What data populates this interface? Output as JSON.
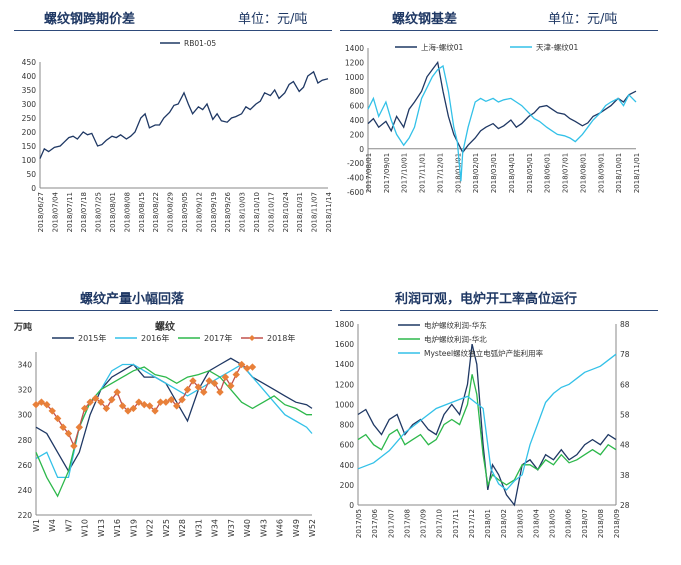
{
  "panels": {
    "p1": {
      "title": "螺纹钢跨期价差",
      "unit": "单位：元/吨"
    },
    "p2": {
      "title": "螺纹钢基差",
      "unit": "单位：元/吨"
    },
    "p3": {
      "title": "螺纹产量小幅回落"
    },
    "p4": {
      "title": "利润可观，电炉开工率高位运行"
    }
  },
  "colors": {
    "navy": "#1f3864",
    "cyan": "#33c1e8",
    "green": "#2db84b",
    "orange": "#e8803a",
    "red": "#c0504d"
  },
  "chart_data": [
    {
      "type": "line",
      "title": "螺纹钢跨期价差",
      "ylim": [
        0,
        450
      ],
      "yticks": [
        0,
        50,
        100,
        150,
        200,
        250,
        300,
        350,
        400,
        450
      ],
      "xticks": [
        "2018/06/27",
        "2018/07/04",
        "2018/07/11",
        "2018/07/18",
        "2018/07/25",
        "2018/08/01",
        "2018/08/08",
        "2018/08/15",
        "2018/08/22",
        "2018/08/29",
        "2018/09/05",
        "2018/09/12",
        "2018/09/19",
        "2018/09/26",
        "2018/10/03",
        "2018/10/10",
        "2018/10/17",
        "2018/10/24",
        "2018/10/31",
        "2018/11/07",
        "2018/11/14"
      ],
      "series": [
        {
          "name": "RB01-05",
          "color": "#1f3864",
          "x": [
            0,
            0.3,
            0.6,
            1,
            1.4,
            1.7,
            2,
            2.3,
            2.6,
            3,
            3.3,
            3.6,
            4,
            4.3,
            4.6,
            5,
            5.3,
            5.6,
            6,
            6.3,
            6.6,
            7,
            7.3,
            7.6,
            8,
            8.3,
            8.6,
            9,
            9.3,
            9.6,
            10,
            10.3,
            10.6,
            11,
            11.3,
            11.6,
            12,
            12.3,
            12.6,
            13,
            13.3,
            13.6,
            14,
            14.3,
            14.6,
            15,
            15.3,
            15.6,
            16,
            16.3,
            16.6,
            17,
            17.3,
            17.6,
            18,
            18.3,
            18.6,
            19,
            19.3,
            19.6,
            20
          ],
          "y": [
            105,
            140,
            130,
            145,
            150,
            165,
            180,
            185,
            175,
            200,
            190,
            195,
            150,
            155,
            170,
            185,
            180,
            190,
            175,
            185,
            200,
            250,
            265,
            215,
            225,
            225,
            250,
            270,
            295,
            300,
            340,
            300,
            265,
            290,
            280,
            300,
            245,
            265,
            240,
            235,
            250,
            255,
            265,
            290,
            280,
            300,
            310,
            340,
            330,
            350,
            320,
            340,
            370,
            380,
            345,
            360,
            400,
            415,
            375,
            385,
            390
          ]
        }
      ]
    },
    {
      "type": "line",
      "title": "螺纹钢基差",
      "ylim": [
        -600,
        1400
      ],
      "yticks": [
        -600,
        -400,
        -200,
        0,
        200,
        400,
        600,
        800,
        1000,
        1200,
        1400
      ],
      "xticks": [
        "2017/08/01",
        "2017/09/01",
        "2017/10/01",
        "2017/11/01",
        "2017/12/01",
        "2018/01/01",
        "2018/02/01",
        "2018/03/01",
        "2018/04/01",
        "2018/05/01",
        "2018/06/01",
        "2018/07/01",
        "2018/08/01",
        "2018/09/01",
        "2018/10/01",
        "2018/11/01"
      ],
      "series": [
        {
          "name": "上海-螺纹01",
          "color": "#1f3864",
          "x": [
            0,
            0.3,
            0.6,
            1,
            1.3,
            1.6,
            2,
            2.3,
            2.6,
            3,
            3.3,
            3.6,
            3.9,
            4.2,
            4.5,
            4.8,
            5,
            5.3,
            5.6,
            6,
            6.3,
            6.6,
            7,
            7.3,
            7.6,
            8,
            8.3,
            8.6,
            9,
            9.3,
            9.6,
            10,
            10.3,
            10.6,
            11,
            11.3,
            11.6,
            12,
            12.3,
            12.6,
            13,
            13.3,
            13.6,
            14,
            14.3,
            14.6,
            15
          ],
          "y": [
            350,
            420,
            300,
            380,
            250,
            450,
            300,
            550,
            650,
            800,
            1000,
            1100,
            1200,
            800,
            450,
            200,
            100,
            -50,
            50,
            150,
            250,
            300,
            350,
            280,
            320,
            400,
            300,
            350,
            450,
            500,
            580,
            600,
            550,
            500,
            480,
            420,
            380,
            320,
            360,
            450,
            500,
            550,
            600,
            700,
            650,
            750,
            800
          ]
        },
        {
          "name": "天津-螺纹01",
          "color": "#33c1e8",
          "x": [
            0,
            0.3,
            0.6,
            1,
            1.3,
            1.6,
            2,
            2.3,
            2.6,
            3,
            3.3,
            3.6,
            3.9,
            4.2,
            4.5,
            4.8,
            5,
            5.2,
            5.3,
            5.6,
            6,
            6.3,
            6.6,
            7,
            7.3,
            7.6,
            8,
            8.3,
            8.6,
            9,
            9.3,
            9.6,
            10,
            10.3,
            10.6,
            11,
            11.3,
            11.6,
            12,
            12.3,
            12.6,
            13,
            13.3,
            13.6,
            14,
            14.3,
            14.6,
            15
          ],
          "y": [
            550,
            700,
            450,
            650,
            400,
            200,
            50,
            150,
            300,
            700,
            850,
            1000,
            1100,
            1150,
            800,
            300,
            100,
            -450,
            -50,
            300,
            650,
            700,
            660,
            700,
            650,
            680,
            700,
            650,
            600,
            500,
            420,
            380,
            300,
            250,
            200,
            180,
            150,
            100,
            200,
            300,
            400,
            500,
            600,
            650,
            700,
            600,
            750,
            650
          ]
        }
      ]
    },
    {
      "type": "line",
      "title": "螺纹产量小幅回落",
      "ylabel": "万吨",
      "overlay_label": "螺纹",
      "ylim": [
        220,
        350
      ],
      "yticks": [
        220,
        240,
        260,
        280,
        300,
        320,
        340
      ],
      "xticks": [
        "W1",
        "W4",
        "W7",
        "W10",
        "W13",
        "W16",
        "W19",
        "W22",
        "W25",
        "W28",
        "W31",
        "W34",
        "W37",
        "W40",
        "W43",
        "W46",
        "W49",
        "W52"
      ],
      "series": [
        {
          "name": "2015年",
          "color": "#1f3864",
          "x": [
            1,
            3,
            5,
            7,
            9,
            11,
            13,
            15,
            17,
            19,
            21,
            23,
            25,
            27,
            29,
            31,
            33,
            35,
            37,
            39,
            41,
            43,
            45,
            47,
            49,
            51,
            52
          ],
          "y": [
            290,
            285,
            270,
            255,
            270,
            300,
            320,
            330,
            335,
            340,
            330,
            330,
            325,
            310,
            295,
            320,
            335,
            340,
            345,
            340,
            330,
            325,
            320,
            315,
            310,
            308,
            305
          ]
        },
        {
          "name": "2016年",
          "color": "#33c1e8",
          "x": [
            1,
            3,
            5,
            7,
            9,
            11,
            13,
            15,
            17,
            19,
            21,
            23,
            25,
            27,
            29,
            31,
            33,
            35,
            37,
            39,
            41,
            43,
            45,
            47,
            49,
            51,
            52
          ],
          "y": [
            265,
            270,
            250,
            250,
            290,
            310,
            320,
            335,
            340,
            340,
            335,
            330,
            325,
            320,
            315,
            320,
            325,
            330,
            335,
            340,
            330,
            320,
            310,
            300,
            295,
            290,
            285
          ]
        },
        {
          "name": "2017年",
          "color": "#2db84b",
          "x": [
            1,
            3,
            5,
            7,
            9,
            11,
            13,
            15,
            17,
            19,
            21,
            23,
            25,
            27,
            29,
            31,
            33,
            35,
            37,
            39,
            41,
            43,
            45,
            47,
            49,
            51,
            52
          ],
          "y": [
            270,
            250,
            235,
            255,
            290,
            310,
            320,
            325,
            330,
            335,
            338,
            332,
            330,
            325,
            330,
            332,
            335,
            330,
            320,
            310,
            305,
            310,
            315,
            308,
            305,
            300,
            300
          ]
        },
        {
          "name": "2018年",
          "color": "#c0504d",
          "x": [
            1,
            2,
            3,
            4,
            5,
            6,
            7,
            8,
            9,
            10,
            11,
            12,
            13,
            14,
            15,
            16,
            17,
            18,
            19,
            20,
            21,
            22,
            23,
            24,
            25,
            26,
            27,
            28,
            29,
            30,
            31,
            32,
            33,
            34,
            35,
            36,
            37,
            38,
            39,
            40,
            41
          ],
          "y": [
            308,
            310,
            308,
            303,
            297,
            290,
            285,
            275,
            290,
            305,
            310,
            313,
            310,
            305,
            312,
            318,
            307,
            303,
            305,
            310,
            308,
            307,
            303,
            310,
            310,
            312,
            307,
            312,
            320,
            327,
            322,
            318,
            327,
            325,
            318,
            330,
            323,
            332,
            340,
            337,
            338
          ]
        }
      ]
    },
    {
      "type": "line",
      "title": "利润可观，电炉开工率高位运行",
      "ylim": [
        0,
        1800
      ],
      "yticks": [
        0,
        200,
        400,
        600,
        800,
        1000,
        1200,
        1400,
        1600,
        1800
      ],
      "ylim_right": [
        28,
        88
      ],
      "yticks_right": [
        28,
        38,
        48,
        58,
        68,
        78,
        88
      ],
      "xticks": [
        "2017/05",
        "2017/06",
        "2017/07",
        "2017/08",
        "2017/09",
        "2017/10",
        "2017/11",
        "2017/12",
        "2018/01",
        "2018/02",
        "2018/03",
        "2018/04",
        "2018/05",
        "2018/06",
        "2018/07",
        "2018/08",
        "2018/09"
      ],
      "series": [
        {
          "name": "电炉螺纹利润-华东",
          "color": "#1f3864",
          "axis": "left",
          "x": [
            0,
            0.5,
            1,
            1.5,
            2,
            2.5,
            3,
            3.5,
            4,
            4.5,
            5,
            5.5,
            6,
            6.5,
            7,
            7.3,
            7.6,
            8,
            8.3,
            8.6,
            9,
            9.5,
            10,
            10.5,
            11,
            11.5,
            12,
            12.5,
            13,
            13.5,
            14,
            14.5,
            15,
            15.5,
            16,
            16.5
          ],
          "y": [
            900,
            950,
            800,
            700,
            850,
            900,
            700,
            800,
            850,
            750,
            700,
            900,
            1000,
            900,
            1200,
            1600,
            1400,
            600,
            150,
            400,
            300,
            100,
            0,
            400,
            450,
            350,
            500,
            450,
            550,
            450,
            500,
            600,
            650,
            600,
            700,
            650
          ]
        },
        {
          "name": "电炉螺纹利润-华北",
          "color": "#2db84b",
          "axis": "left",
          "x": [
            0,
            0.5,
            1,
            1.5,
            2,
            2.5,
            3,
            3.5,
            4,
            4.5,
            5,
            5.5,
            6,
            6.5,
            7,
            7.3,
            7.6,
            8,
            8.3,
            8.6,
            9,
            9.5,
            10,
            10.5,
            11,
            11.5,
            12,
            12.5,
            13,
            13.5,
            14,
            14.5,
            15,
            15.5,
            16,
            16.5
          ],
          "y": [
            650,
            700,
            600,
            550,
            700,
            750,
            600,
            650,
            700,
            600,
            650,
            800,
            850,
            800,
            1000,
            1300,
            1100,
            500,
            200,
            300,
            250,
            200,
            250,
            400,
            400,
            350,
            450,
            400,
            500,
            420,
            450,
            500,
            550,
            500,
            600,
            550
          ]
        },
        {
          "name": "Mysteel螺纹独立电弧炉产能利用率",
          "color": "#33c1e8",
          "axis": "right",
          "x": [
            0,
            1,
            2,
            3,
            4,
            5,
            6,
            7,
            8,
            8.5,
            9,
            9.5,
            10,
            10.5,
            11,
            11.5,
            12,
            12.5,
            13,
            13.5,
            14,
            14.5,
            15,
            15.5,
            16,
            16.5
          ],
          "y": [
            40,
            42,
            46,
            52,
            56,
            60,
            62,
            64,
            60,
            40,
            35,
            33,
            36,
            38,
            48,
            55,
            62,
            65,
            67,
            68,
            70,
            72,
            73,
            74,
            76,
            78
          ]
        }
      ]
    }
  ]
}
